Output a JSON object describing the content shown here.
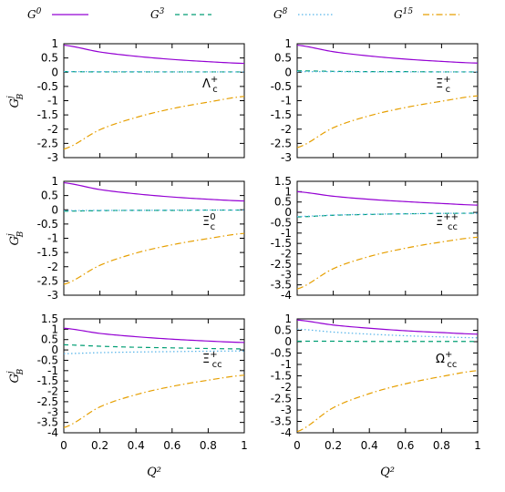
{
  "legend": [
    {
      "label": "G",
      "sup": "0",
      "color": "#9400d3",
      "dash": ""
    },
    {
      "label": "G",
      "sup": "3",
      "color": "#009e73",
      "dash": "5,4"
    },
    {
      "label": "G",
      "sup": "8",
      "color": "#56b4e9",
      "dash": "1.5,2.5"
    },
    {
      "label": "G",
      "sup": "15",
      "color": "#e69f00",
      "dash": "7,3,1.5,3"
    }
  ],
  "chart_data": [
    {
      "type": "line",
      "label": {
        "base": "Λ",
        "sub": "c",
        "sup": "+"
      },
      "x": [
        0,
        0.2,
        0.4,
        0.6,
        0.8,
        1.0
      ],
      "ylim": [
        -3,
        1
      ],
      "yticks": [
        "1",
        "0.5",
        "0",
        "-0.5",
        "-1",
        "-1.5",
        "-2",
        "-2.5",
        "-3"
      ],
      "xticks": [],
      "ylabel": {
        "base": "G",
        "sup": "j",
        "sub": "B"
      },
      "xlabel": "",
      "grid": false,
      "series": [
        {
          "key": "G0",
          "values": [
            0.95,
            0.71,
            0.56,
            0.45,
            0.37,
            0.31
          ]
        },
        {
          "key": "G3",
          "values": [
            0.02,
            0.01,
            0.01,
            0.01,
            0.01,
            0.01
          ]
        },
        {
          "key": "G8",
          "values": [
            0.02,
            0.02,
            0.02,
            0.01,
            0.01,
            0.01
          ]
        },
        {
          "key": "G15",
          "values": [
            -2.7,
            -2.02,
            -1.59,
            -1.28,
            -1.05,
            -0.85
          ]
        }
      ]
    },
    {
      "type": "line",
      "label": {
        "base": "Ξ",
        "sub": "c",
        "sup": "+"
      },
      "x": [
        0,
        0.2,
        0.4,
        0.6,
        0.8,
        1.0
      ],
      "ylim": [
        -3,
        1
      ],
      "yticks": [
        "1",
        "0.5",
        "0",
        "-0.5",
        "-1",
        "-1.5",
        "-2",
        "-2.5",
        "-3"
      ],
      "xticks": [],
      "ylabel": {
        "base": "",
        "sup": "",
        "sub": ""
      },
      "xlabel": "",
      "grid": false,
      "series": [
        {
          "key": "G0",
          "values": [
            0.95,
            0.72,
            0.57,
            0.46,
            0.38,
            0.32
          ]
        },
        {
          "key": "G3",
          "values": [
            0.05,
            0.03,
            0.02,
            0.02,
            0.01,
            0.01
          ]
        },
        {
          "key": "G8",
          "values": [
            0.02,
            0.02,
            0.01,
            0.01,
            0.01,
            0.01
          ]
        },
        {
          "key": "G15",
          "values": [
            -2.65,
            -1.95,
            -1.53,
            -1.24,
            -1.02,
            -0.83
          ]
        }
      ]
    },
    {
      "type": "line",
      "label": {
        "base": "Ξ",
        "sub": "c",
        "sup": "0"
      },
      "x": [
        0,
        0.2,
        0.4,
        0.6,
        0.8,
        1.0
      ],
      "ylim": [
        -3,
        1
      ],
      "yticks": [
        "1",
        "0.5",
        "0",
        "-0.5",
        "-1",
        "-1.5",
        "-2",
        "-2.5",
        "-3"
      ],
      "xticks": [],
      "ylabel": {
        "base": "G",
        "sup": "j",
        "sub": "B"
      },
      "xlabel": "",
      "grid": false,
      "series": [
        {
          "key": "G0",
          "values": [
            0.95,
            0.71,
            0.56,
            0.45,
            0.37,
            0.31
          ]
        },
        {
          "key": "G3",
          "values": [
            -0.05,
            -0.03,
            -0.02,
            -0.02,
            -0.01,
            -0.01
          ]
        },
        {
          "key": "G8",
          "values": [
            -0.03,
            -0.02,
            -0.02,
            -0.01,
            -0.01,
            -0.01
          ]
        },
        {
          "key": "G15",
          "values": [
            -2.62,
            -1.95,
            -1.52,
            -1.23,
            -1.01,
            -0.83
          ]
        }
      ]
    },
    {
      "type": "line",
      "label": {
        "base": "Ξ",
        "sub": "cc",
        "sup": "++"
      },
      "x": [
        0,
        0.2,
        0.4,
        0.6,
        0.8,
        1.0
      ],
      "ylim": [
        -4,
        1.5
      ],
      "yticks": [
        "1.5",
        "1",
        "0.5",
        "0",
        "-0.5",
        "-1",
        "-1.5",
        "-2",
        "-2.5",
        "-3",
        "-3.5",
        "-4"
      ],
      "xticks": [],
      "ylabel": {
        "base": "",
        "sup": "",
        "sub": ""
      },
      "xlabel": "",
      "grid": false,
      "series": [
        {
          "key": "G0",
          "values": [
            1.0,
            0.78,
            0.63,
            0.52,
            0.43,
            0.35
          ]
        },
        {
          "key": "G3",
          "values": [
            -0.22,
            -0.14,
            -0.1,
            -0.07,
            -0.05,
            -0.04
          ]
        },
        {
          "key": "G8",
          "values": [
            -0.2,
            -0.13,
            -0.09,
            -0.07,
            -0.05,
            -0.04
          ]
        },
        {
          "key": "G15",
          "values": [
            -3.7,
            -2.72,
            -2.13,
            -1.73,
            -1.43,
            -1.2
          ]
        }
      ]
    },
    {
      "type": "line",
      "label": {
        "base": "Ξ",
        "sub": "cc",
        "sup": "+"
      },
      "x": [
        0,
        0.2,
        0.4,
        0.6,
        0.8,
        1.0
      ],
      "ylim": [
        -4,
        1.5
      ],
      "yticks": [
        "1.5",
        "1",
        "0.5",
        "0",
        "-0.5",
        "-1",
        "-1.5",
        "-2",
        "-2.5",
        "-3",
        "-3.5",
        "-4"
      ],
      "xticks": [
        "0",
        "0.2",
        "0.4",
        "0.6",
        "0.8",
        "1"
      ],
      "ylabel": {
        "base": "G",
        "sup": "j",
        "sub": "B"
      },
      "xlabel": "Q²",
      "grid": false,
      "series": [
        {
          "key": "G0",
          "values": [
            1.05,
            0.8,
            0.64,
            0.52,
            0.43,
            0.36
          ]
        },
        {
          "key": "G3",
          "values": [
            0.25,
            0.18,
            0.13,
            0.1,
            0.07,
            0.05
          ]
        },
        {
          "key": "G8",
          "values": [
            -0.18,
            -0.13,
            -0.1,
            -0.08,
            -0.06,
            -0.05
          ]
        },
        {
          "key": "G15",
          "values": [
            -3.75,
            -2.75,
            -2.16,
            -1.76,
            -1.46,
            -1.22
          ]
        }
      ]
    },
    {
      "type": "line",
      "label": {
        "base": "Ω",
        "sub": "cc",
        "sup": "+"
      },
      "x": [
        0,
        0.2,
        0.4,
        0.6,
        0.8,
        1.0
      ],
      "ylim": [
        -4,
        1
      ],
      "yticks": [
        "1",
        "0.5",
        "0",
        "-0.5",
        "-1",
        "-1.5",
        "-2",
        "-2.5",
        "-3",
        "-3.5",
        "-4"
      ],
      "xticks": [
        "0",
        "0.2",
        "0.4",
        "0.6",
        "0.8",
        "1"
      ],
      "ylabel": {
        "base": "",
        "sup": "",
        "sub": ""
      },
      "xlabel": "Q²",
      "grid": false,
      "series": [
        {
          "key": "G0",
          "values": [
            0.95,
            0.73,
            0.59,
            0.48,
            0.4,
            0.33
          ]
        },
        {
          "key": "G3",
          "values": [
            0.02,
            0.02,
            0.01,
            0.01,
            0.01,
            0.01
          ]
        },
        {
          "key": "G8",
          "values": [
            0.55,
            0.42,
            0.33,
            0.26,
            0.21,
            0.17
          ]
        },
        {
          "key": "G15",
          "values": [
            -3.95,
            -2.9,
            -2.28,
            -1.85,
            -1.53,
            -1.27
          ]
        }
      ]
    }
  ]
}
